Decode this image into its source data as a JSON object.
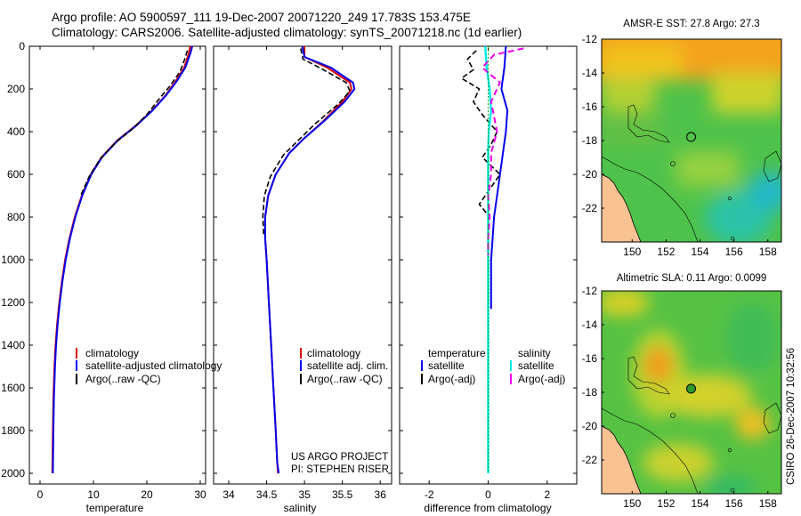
{
  "header": {
    "line1": "Argo profile: AO 5900597_111 19-Dec-2007 20071220_249 17.783S 153.475E",
    "line2": "Climatology: CARS2006. Satellite-adjusted climatology: synTS_20071218.nc (1d earlier)"
  },
  "credit": {
    "project": "US ARGO PROJECT",
    "pi": "PI: STEPHEN RISER",
    "stamp": "CSIRO 26-Dec-2007 10:32:56"
  },
  "colors": {
    "climatology": "#dd0000",
    "satellite": "#0000ee",
    "argo": "#000000",
    "salinity_satellite": "#00e8e8",
    "salinity_argo": "#ee00ee",
    "land": "#f9c293",
    "coast": "#000000"
  },
  "chart_data": [
    {
      "id": "temperature",
      "type": "line",
      "xlabel": "temperature",
      "xlim": [
        -2,
        31
      ],
      "ylim": [
        0,
        2050
      ],
      "y_reversed": true,
      "xticks": [
        0,
        10,
        20,
        30
      ],
      "yticks": [
        0,
        200,
        400,
        600,
        800,
        1000,
        1200,
        1400,
        1600,
        1800,
        2000
      ],
      "legend": [
        "climatology",
        "satellite-adjusted climatology",
        "Argo(..raw -QC)"
      ],
      "series": [
        {
          "name": "climatology",
          "color": "#dd0000",
          "dash": "",
          "width": 2,
          "x": [
            28.1,
            27.9,
            27.0,
            25.5,
            23.5,
            21.0,
            18.0,
            14.5,
            11.5,
            9.5,
            7.8,
            6.5,
            5.5,
            4.7,
            4.1,
            3.6,
            3.2,
            2.9,
            2.7,
            2.5,
            2.4,
            2.3
          ],
          "y": [
            0,
            30,
            100,
            160,
            230,
            300,
            370,
            440,
            520,
            600,
            700,
            800,
            900,
            1000,
            1100,
            1200,
            1300,
            1400,
            1500,
            1650,
            1800,
            2000
          ]
        },
        {
          "name": "satellite-adjusted climatology",
          "color": "#0000ee",
          "dash": "",
          "width": 2,
          "x": [
            28.5,
            28.2,
            27.2,
            25.7,
            23.6,
            21.1,
            18.1,
            14.6,
            11.6,
            9.6,
            7.9,
            6.6,
            5.6,
            4.8,
            4.2,
            3.7,
            3.3,
            3.0,
            2.8,
            2.6,
            2.5,
            2.4
          ],
          "y": [
            0,
            30,
            100,
            160,
            230,
            300,
            370,
            440,
            520,
            600,
            700,
            800,
            900,
            1000,
            1100,
            1200,
            1300,
            1400,
            1500,
            1650,
            1800,
            2000
          ]
        },
        {
          "name": "Argo(..raw -QC)",
          "color": "#000000",
          "dash": "6,3",
          "width": 1.6,
          "x": [
            27.6,
            27.1,
            26.2,
            24.2,
            22.2,
            20.0,
            17.2,
            14.2,
            11.2,
            9.2,
            7.6
          ],
          "y": [
            20,
            60,
            120,
            190,
            250,
            320,
            390,
            450,
            530,
            610,
            700
          ]
        }
      ]
    },
    {
      "id": "salinity",
      "type": "line",
      "xlabel": "salinity",
      "xlim": [
        33.8,
        36.15
      ],
      "ylim": [
        0,
        2050
      ],
      "y_reversed": true,
      "xticks": [
        34,
        34.5,
        35,
        35.5,
        36
      ],
      "legend": [
        "climatology",
        "satellite adj. clim.",
        "Argo(..raw -QC)"
      ],
      "series": [
        {
          "name": "climatology",
          "color": "#dd0000",
          "dash": "",
          "width": 2,
          "x": [
            35.0,
            35.0,
            35.3,
            35.6,
            35.62,
            35.5,
            35.25,
            35.0,
            34.8,
            34.62,
            34.52,
            34.48,
            34.48,
            34.5,
            34.53,
            34.56,
            34.59,
            34.62,
            34.64,
            34.65
          ],
          "y": [
            0,
            50,
            100,
            170,
            200,
            260,
            350,
            430,
            500,
            600,
            700,
            800,
            900,
            1000,
            1200,
            1400,
            1600,
            1800,
            1950,
            2000
          ]
        },
        {
          "name": "satellite adj. clim.",
          "color": "#0000ee",
          "dash": "",
          "width": 2,
          "x": [
            34.97,
            35.0,
            35.35,
            35.64,
            35.66,
            35.53,
            35.26,
            35.0,
            34.8,
            34.62,
            34.52,
            34.48,
            34.48,
            34.5,
            34.53,
            34.56,
            34.59,
            34.62,
            34.64,
            34.66
          ],
          "y": [
            0,
            50,
            100,
            170,
            200,
            260,
            350,
            430,
            500,
            600,
            700,
            800,
            900,
            1000,
            1200,
            1400,
            1600,
            1800,
            1950,
            2000
          ]
        },
        {
          "name": "Argo(..raw -QC)",
          "color": "#000000",
          "dash": "6,3",
          "width": 1.6,
          "x": [
            34.95,
            34.98,
            35.25,
            35.55,
            35.6,
            35.45,
            35.15,
            34.92,
            34.72,
            34.55,
            34.47,
            34.45,
            34.46
          ],
          "y": [
            10,
            60,
            110,
            170,
            210,
            270,
            360,
            440,
            510,
            610,
            700,
            800,
            880
          ]
        }
      ]
    },
    {
      "id": "difference",
      "type": "line",
      "xlabel": "difference from climatology",
      "xlim": [
        -3,
        3
      ],
      "ylim": [
        0,
        2050
      ],
      "y_reversed": true,
      "xticks": [
        -2,
        0,
        2
      ],
      "legend_temperature_title": "temperature",
      "legend_salinity_title": "salinity",
      "legend_temperature": [
        "satellite",
        "Argo(-adj)"
      ],
      "legend_salinity": [
        "satellite",
        "Argo(-adj)"
      ],
      "series": [
        {
          "name": "temperature satellite",
          "color": "#0000ee",
          "dash": "",
          "width": 2,
          "x": [
            0.6,
            0.55,
            0.45,
            0.65,
            0.6,
            0.5,
            0.4,
            0.3,
            0.2,
            0.15,
            0.1,
            0.1,
            0.1
          ],
          "y": [
            0,
            100,
            200,
            300,
            400,
            500,
            600,
            700,
            800,
            900,
            1000,
            1100,
            1230
          ]
        },
        {
          "name": "temperature Argo(-adj)",
          "color": "#000000",
          "dash": "6,3",
          "width": 1.6,
          "x": [
            -0.4,
            -0.7,
            -0.5,
            -0.9,
            -0.3,
            -0.5,
            -0.2,
            0.3,
            0.1,
            -0.2,
            0.4,
            0.0,
            -0.3,
            0.05
          ],
          "y": [
            20,
            60,
            110,
            150,
            200,
            260,
            320,
            400,
            460,
            520,
            600,
            680,
            740,
            800
          ]
        },
        {
          "name": "salinity satellite",
          "color": "#00e8e8",
          "dash": "",
          "width": 2.4,
          "x": [
            -0.1,
            -0.05,
            0.05,
            0.1,
            0.02,
            0.0,
            0.0,
            0.0,
            0.0,
            0.0,
            0.0
          ],
          "y": [
            0,
            100,
            200,
            300,
            400,
            500,
            700,
            1000,
            1400,
            1800,
            2000
          ]
        },
        {
          "name": "salinity Argo(-adj)",
          "color": "#ee00ee",
          "dash": "7,4",
          "width": 2,
          "x": [
            1.2,
            0.2,
            -0.2,
            0.4,
            0.1,
            0.3,
            0.1,
            0.1,
            0.0,
            0.05,
            0.0,
            0.0
          ],
          "y": [
            10,
            40,
            100,
            170,
            260,
            400,
            500,
            600,
            700,
            800,
            900,
            980
          ]
        },
        {
          "name": "zero line",
          "color": "#00aa00",
          "dash": "2,2",
          "width": 1,
          "x": [
            0.0,
            0.0
          ],
          "y": [
            0,
            2000
          ]
        }
      ]
    },
    {
      "id": "sst-map",
      "type": "heatmap",
      "title": "AMSR-E SST: 27.8 Argo: 27.3",
      "xlim": [
        148.2,
        158.8
      ],
      "ylim": [
        -12,
        -24
      ],
      "xticks": [
        150,
        152,
        154,
        156,
        158
      ],
      "yticks": [
        -12,
        -14,
        -16,
        -18,
        -20,
        -22
      ],
      "marker": {
        "lon": 153.475,
        "lat": -17.783
      }
    },
    {
      "id": "sla-map",
      "type": "heatmap",
      "title": "Altimetric SLA: 0.11 Argo: 0.0099",
      "xlim": [
        148.2,
        158.8
      ],
      "ylim": [
        -12,
        -24
      ],
      "xticks": [
        150,
        152,
        154,
        156,
        158
      ],
      "yticks": [
        -12,
        -14,
        -16,
        -18,
        -20,
        -22
      ],
      "marker": {
        "lon": 153.475,
        "lat": -17.783
      }
    }
  ]
}
